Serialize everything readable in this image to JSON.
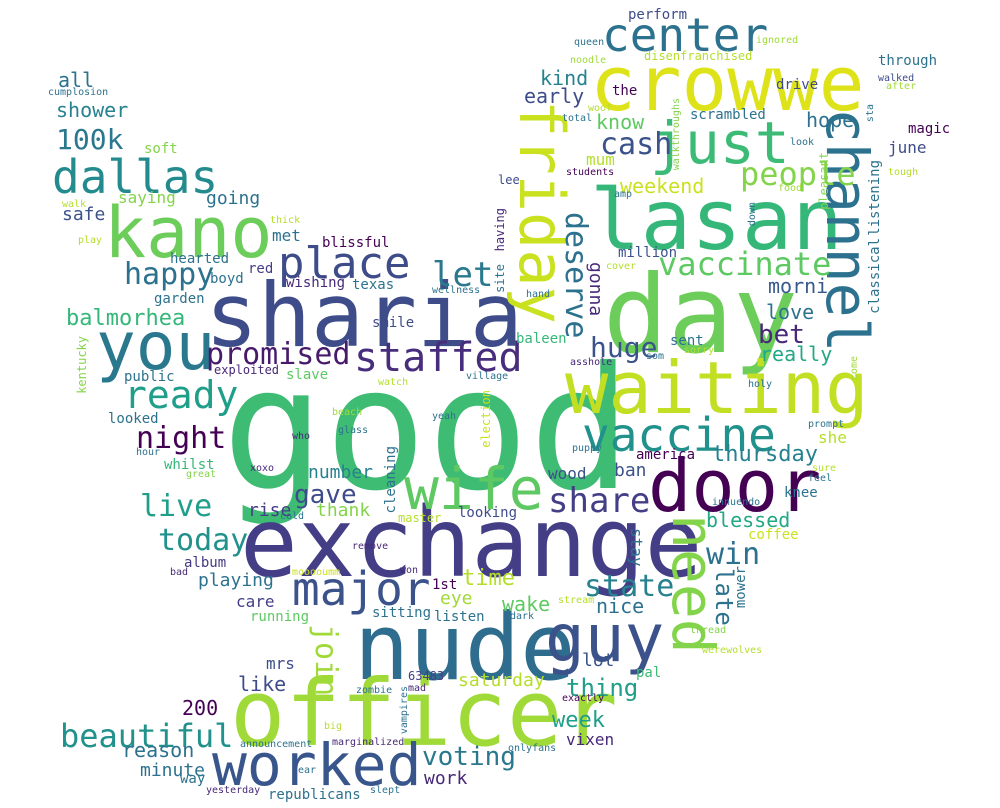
{
  "words": [
    {
      "text": "good",
      "color": "#3fbc73"
    },
    {
      "text": "exchange",
      "color": "#433e85"
    },
    {
      "text": "sharia",
      "color": "#3e4c8a"
    },
    {
      "text": "nude",
      "color": "#2e6d8e"
    },
    {
      "text": "officer",
      "color": "#a0da39"
    },
    {
      "text": "day",
      "color": "#6ccd5a"
    },
    {
      "text": "waiting",
      "color": "#c2df23"
    },
    {
      "text": "lasan",
      "color": "#35b779"
    },
    {
      "text": "crowwe",
      "color": "#dde318"
    },
    {
      "text": "door",
      "color": "#440154"
    },
    {
      "text": "kano",
      "color": "#6ccd5a"
    },
    {
      "text": "you",
      "color": "#2a788e"
    },
    {
      "text": "wife",
      "color": "#5ec962"
    },
    {
      "text": "worked",
      "color": "#39568c"
    },
    {
      "text": "guy",
      "color": "#3b528b"
    },
    {
      "text": "friday",
      "color": "#cae11f"
    },
    {
      "text": "channel",
      "color": "#2c728e"
    },
    {
      "text": "just",
      "color": "#3bbb75"
    },
    {
      "text": "major",
      "color": "#3b528b"
    },
    {
      "text": "vaccine",
      "color": "#21918c"
    },
    {
      "text": "place",
      "color": "#3e4c8a"
    },
    {
      "text": "center",
      "color": "#2c728e"
    },
    {
      "text": "dallas",
      "color": "#238a8d"
    },
    {
      "text": "staffed",
      "color": "#472d7b"
    },
    {
      "text": "need",
      "color": "#84d44b"
    },
    {
      "text": "vaccinate",
      "color": "#5ec962"
    },
    {
      "text": "people",
      "color": "#84d44b"
    },
    {
      "text": "ready",
      "color": "#1f9e89"
    },
    {
      "text": "promised",
      "color": "#481a6c"
    },
    {
      "text": "share",
      "color": "#433e85"
    },
    {
      "text": "deserve",
      "color": "#2c728e"
    },
    {
      "text": "huge",
      "color": "#3b528b"
    },
    {
      "text": "happy",
      "color": "#2c728e"
    },
    {
      "text": "night",
      "color": "#440154"
    },
    {
      "text": "let",
      "color": "#2a788e"
    },
    {
      "text": "cash",
      "color": "#3b528b"
    },
    {
      "text": "live",
      "color": "#1f9e89"
    },
    {
      "text": "today",
      "color": "#21918c"
    },
    {
      "text": "beautiful",
      "color": "#21918c"
    },
    {
      "text": "win",
      "color": "#2c728e"
    },
    {
      "text": "state",
      "color": "#26828e"
    },
    {
      "text": "gave",
      "color": "#3e4c8a"
    },
    {
      "text": "join",
      "color": "#a0da39"
    },
    {
      "text": "voting",
      "color": "#2a788e"
    },
    {
      "text": "bet",
      "color": "#482878"
    },
    {
      "text": "100k",
      "color": "#2a788e"
    },
    {
      "text": "thursday",
      "color": "#26828e"
    },
    {
      "text": "week",
      "color": "#1f9e89"
    },
    {
      "text": "time",
      "color": "#b5de2b"
    },
    {
      "text": "late",
      "color": "#2c728e"
    },
    {
      "text": "thing",
      "color": "#1f9e89"
    },
    {
      "text": "balmorhea",
      "color": "#35b779"
    },
    {
      "text": "weekend",
      "color": "#cae11f"
    },
    {
      "text": "really",
      "color": "#22a884"
    },
    {
      "text": "know",
      "color": "#5ec962"
    },
    {
      "text": "early",
      "color": "#3e4c8a"
    },
    {
      "text": "kind",
      "color": "#26828e"
    },
    {
      "text": "morni",
      "color": "#38598c"
    },
    {
      "text": "love",
      "color": "#2c728e"
    },
    {
      "text": "hope",
      "color": "#2c728e"
    },
    {
      "text": "blessed",
      "color": "#22a884"
    },
    {
      "text": "reason",
      "color": "#2c728e"
    },
    {
      "text": "minute",
      "color": "#2c728e"
    },
    {
      "text": "work",
      "color": "#482878"
    },
    {
      "text": "worked",
      "color": "#39568c"
    },
    {
      "text": "wake",
      "color": "#5ec962"
    },
    {
      "text": "nice",
      "color": "#2c728e"
    },
    {
      "text": "saturday",
      "color": "#b5de2b"
    },
    {
      "text": "like",
      "color": "#3e4c8a"
    },
    {
      "text": "200",
      "color": "#440154"
    },
    {
      "text": "vixen",
      "color": "#482878"
    },
    {
      "text": "mrs",
      "color": "#3e4c8a"
    },
    {
      "text": "lot",
      "color": "#3b528b"
    },
    {
      "text": "eye",
      "color": "#a0da39"
    },
    {
      "text": "playing",
      "color": "#2c728e"
    },
    {
      "text": "number",
      "color": "#26828e"
    },
    {
      "text": "rise",
      "color": "#433e85"
    },
    {
      "text": "thank",
      "color": "#84d44b"
    },
    {
      "text": "care",
      "color": "#433e85"
    },
    {
      "text": "album",
      "color": "#443983"
    },
    {
      "text": "safe",
      "color": "#3b528b"
    },
    {
      "text": "met",
      "color": "#2c728e"
    },
    {
      "text": "going",
      "color": "#2c728e"
    },
    {
      "text": "saying",
      "color": "#84d44b"
    },
    {
      "text": "shower",
      "color": "#26828e"
    },
    {
      "text": "all",
      "color": "#2c728e"
    },
    {
      "text": "soft",
      "color": "#84d44b"
    },
    {
      "text": "hearted",
      "color": "#2c728e"
    },
    {
      "text": "boyd",
      "color": "#2c728e"
    },
    {
      "text": "red",
      "color": "#433e85"
    },
    {
      "text": "garden",
      "color": "#2c728e"
    },
    {
      "text": "blissful",
      "color": "#440154"
    },
    {
      "text": "wishing",
      "color": "#482878"
    },
    {
      "text": "texas",
      "color": "#2c728e"
    },
    {
      "text": "public",
      "color": "#2c728e"
    },
    {
      "text": "exploited",
      "color": "#482878"
    },
    {
      "text": "slave",
      "color": "#5ec962"
    },
    {
      "text": "smile",
      "color": "#3e4c8a"
    },
    {
      "text": "looked",
      "color": "#2c728e"
    },
    {
      "text": "whilst",
      "color": "#35b779"
    },
    {
      "text": "gonna",
      "color": "#482878"
    },
    {
      "text": "million",
      "color": "#3b528b"
    },
    {
      "text": "ban",
      "color": "#3b528b"
    },
    {
      "text": "wood",
      "color": "#3b528b"
    },
    {
      "text": "america",
      "color": "#440154"
    },
    {
      "text": "looking",
      "color": "#3e4c8a"
    },
    {
      "text": "stay",
      "color": "#2c728e"
    },
    {
      "text": "cleaning",
      "color": "#2c728e"
    },
    {
      "text": "listen",
      "color": "#2c728e"
    },
    {
      "text": "sitting",
      "color": "#2c728e"
    },
    {
      "text": "running",
      "color": "#5ec962"
    },
    {
      "text": "1st",
      "color": "#440154"
    },
    {
      "text": "pal",
      "color": "#3bbb75"
    },
    {
      "text": "63483",
      "color": "#433e85"
    },
    {
      "text": "republicans",
      "color": "#2c728e"
    },
    {
      "text": "way",
      "color": "#2c728e"
    },
    {
      "text": "she",
      "color": "#b5de2b"
    },
    {
      "text": "knee",
      "color": "#2c728e"
    },
    {
      "text": "coffee",
      "color": "#cae11f"
    },
    {
      "text": "mower",
      "color": "#2c728e"
    },
    {
      "text": "sent",
      "color": "#2c728e"
    },
    {
      "text": "baleen",
      "color": "#35b779"
    },
    {
      "text": "scrambled",
      "color": "#2c728e"
    },
    {
      "text": "drive",
      "color": "#3e4c8a"
    },
    {
      "text": "the",
      "color": "#440154"
    },
    {
      "text": "mum",
      "color": "#b5de2b"
    },
    {
      "text": "lee",
      "color": "#3e4c8a"
    },
    {
      "text": "june",
      "color": "#3e4c8a"
    },
    {
      "text": "magic",
      "color": "#440154"
    },
    {
      "text": "through",
      "color": "#2c728e"
    },
    {
      "text": "perform",
      "color": "#3e4c8a"
    },
    {
      "text": "queen",
      "color": "#2c728e"
    },
    {
      "text": "ignored",
      "color": "#a0da39"
    },
    {
      "text": "noodle",
      "color": "#a0da39"
    },
    {
      "text": "disenfranchised",
      "color": "#b5de2b"
    },
    {
      "text": "walked",
      "color": "#3e4c8a"
    },
    {
      "text": "after",
      "color": "#a0da39"
    },
    {
      "text": "cumplosion",
      "color": "#2c728e"
    },
    {
      "text": "walk",
      "color": "#b5de2b"
    },
    {
      "text": "play",
      "color": "#b5de2b"
    },
    {
      "text": "thick",
      "color": "#b5de2b"
    },
    {
      "text": "wellness",
      "color": "#2c728e"
    },
    {
      "text": "hand",
      "color": "#2c728e"
    },
    {
      "text": "cover",
      "color": "#b5de2b"
    },
    {
      "text": "kentucky",
      "color": "#84d44b"
    },
    {
      "text": "watch",
      "color": "#b5de2b"
    },
    {
      "text": "village",
      "color": "#2c728e"
    },
    {
      "text": "beach",
      "color": "#a0da39"
    },
    {
      "text": "glass",
      "color": "#2c728e"
    },
    {
      "text": "who",
      "color": "#482878"
    },
    {
      "text": "yeah",
      "color": "#2c728e"
    },
    {
      "text": "hour",
      "color": "#2c728e"
    },
    {
      "text": "great",
      "color": "#84d44b"
    },
    {
      "text": "xoxo",
      "color": "#482878"
    },
    {
      "text": "election",
      "color": "#cae11f"
    },
    {
      "text": "cold",
      "color": "#2c728e"
    },
    {
      "text": "master",
      "color": "#b5de2b"
    },
    {
      "text": "remove",
      "color": "#482878"
    },
    {
      "text": "bad",
      "color": "#482878"
    },
    {
      "text": "mooooumm",
      "color": "#cae11f"
    },
    {
      "text": "won",
      "color": "#482878"
    },
    {
      "text": "dark",
      "color": "#2c728e"
    },
    {
      "text": "stream",
      "color": "#b5de2b"
    },
    {
      "text": "thread",
      "color": "#84d44b"
    },
    {
      "text": "werewolves",
      "color": "#b5de2b"
    },
    {
      "text": "mad",
      "color": "#482878"
    },
    {
      "text": "zombie",
      "color": "#2c728e"
    },
    {
      "text": "vampires",
      "color": "#2c728e"
    },
    {
      "text": "exactly",
      "color": "#440154"
    },
    {
      "text": "big",
      "color": "#b5de2b"
    },
    {
      "text": "announcement",
      "color": "#2c728e"
    },
    {
      "text": "marginalized",
      "color": "#482878"
    },
    {
      "text": "onlyfans",
      "color": "#2c728e"
    },
    {
      "text": "ear",
      "color": "#2c728e"
    },
    {
      "text": "yesterday",
      "color": "#482878"
    },
    {
      "text": "slept",
      "color": "#2c728e"
    },
    {
      "text": "innuendo",
      "color": "#2c728e"
    },
    {
      "text": "feel",
      "color": "#2c728e"
    },
    {
      "text": "sure",
      "color": "#b5de2b"
    },
    {
      "text": "puppy",
      "color": "#2c728e"
    },
    {
      "text": "asshole",
      "color": "#482878"
    },
    {
      "text": "som",
      "color": "#2c728e"
    },
    {
      "text": "sorry",
      "color": "#b5de2b"
    },
    {
      "text": "prompt",
      "color": "#2c728e"
    },
    {
      "text": "holy",
      "color": "#2c728e"
    },
    {
      "text": "come",
      "color": "#a0da39"
    },
    {
      "text": "tough",
      "color": "#b5de2b"
    },
    {
      "text": "food",
      "color": "#a0da39"
    },
    {
      "text": "down",
      "color": "#2c728e"
    },
    {
      "text": "look",
      "color": "#2c728e"
    },
    {
      "text": "pleasant",
      "color": "#84d44b"
    },
    {
      "text": "classical",
      "color": "#2c728e"
    },
    {
      "text": "listening",
      "color": "#2c728e"
    },
    {
      "text": "sta",
      "color": "#2c728e"
    },
    {
      "text": "woof",
      "color": "#b5de2b"
    },
    {
      "text": "total",
      "color": "#2c728e"
    },
    {
      "text": "walkthroughs",
      "color": "#84d44b"
    },
    {
      "text": "students",
      "color": "#440154"
    },
    {
      "text": "amp",
      "color": "#2c728e"
    },
    {
      "text": "site",
      "color": "#2c728e"
    },
    {
      "text": "having",
      "color": "#482878"
    }
  ]
}
